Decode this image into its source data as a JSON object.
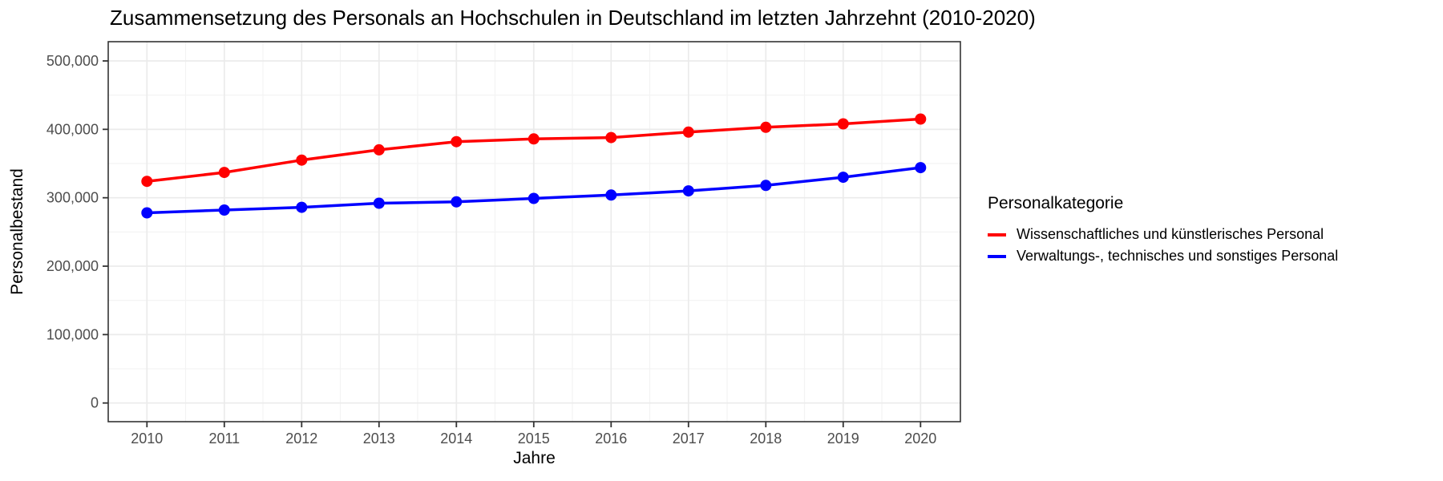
{
  "title": "Zusammensetzung des Personals an Hochschulen in Deutschland im letzten Jahrzehnt (2010-2020)",
  "axes": {
    "x_label": "Jahre",
    "y_label": "Personalbestand"
  },
  "legend": {
    "title": "Personalkategorie"
  },
  "colors": {
    "series_red": "#ff0000",
    "series_blue": "#0000ff",
    "grid_major": "#ebebeb",
    "grid_minor": "#f3f3f3",
    "panel_border": "#333333",
    "tick_mark": "#333333",
    "tick_label": "#4d4d4d"
  },
  "chart_data": {
    "type": "line",
    "title": "Zusammensetzung des Personals an Hochschulen in Deutschland im letzten Jahrzehnt (2010-2020)",
    "xlabel": "Jahre",
    "ylabel": "Personalbestand",
    "legend_title": "Personalkategorie",
    "legend_position": "right",
    "grid": true,
    "marker": "circle",
    "x": [
      2010,
      2011,
      2012,
      2013,
      2014,
      2015,
      2016,
      2017,
      2018,
      2019,
      2020
    ],
    "series": [
      {
        "name": "Wissenschaftliches und künstlerisches Personal",
        "color": "#ff0000",
        "values": [
          324000,
          337000,
          355000,
          370000,
          382000,
          386000,
          388000,
          396000,
          403000,
          408000,
          415000
        ]
      },
      {
        "name": "Verwaltungs-, technisches und sonstiges Personal",
        "color": "#0000ff",
        "values": [
          278000,
          282000,
          286000,
          292000,
          294000,
          299000,
          304000,
          310000,
          318000,
          330000,
          344000
        ]
      }
    ],
    "ylim": [
      0,
      500000
    ],
    "yticks": {
      "values": [
        0,
        100000,
        200000,
        300000,
        400000,
        500000
      ],
      "labels": [
        "0",
        "100,000",
        "200,000",
        "300,000",
        "400,000",
        "500,000"
      ]
    },
    "ytick_minor": [
      50000,
      150000,
      250000,
      350000,
      450000
    ],
    "xticks": [
      "2010",
      "2011",
      "2012",
      "2013",
      "2014",
      "2015",
      "2016",
      "2017",
      "2018",
      "2019",
      "2020"
    ]
  }
}
